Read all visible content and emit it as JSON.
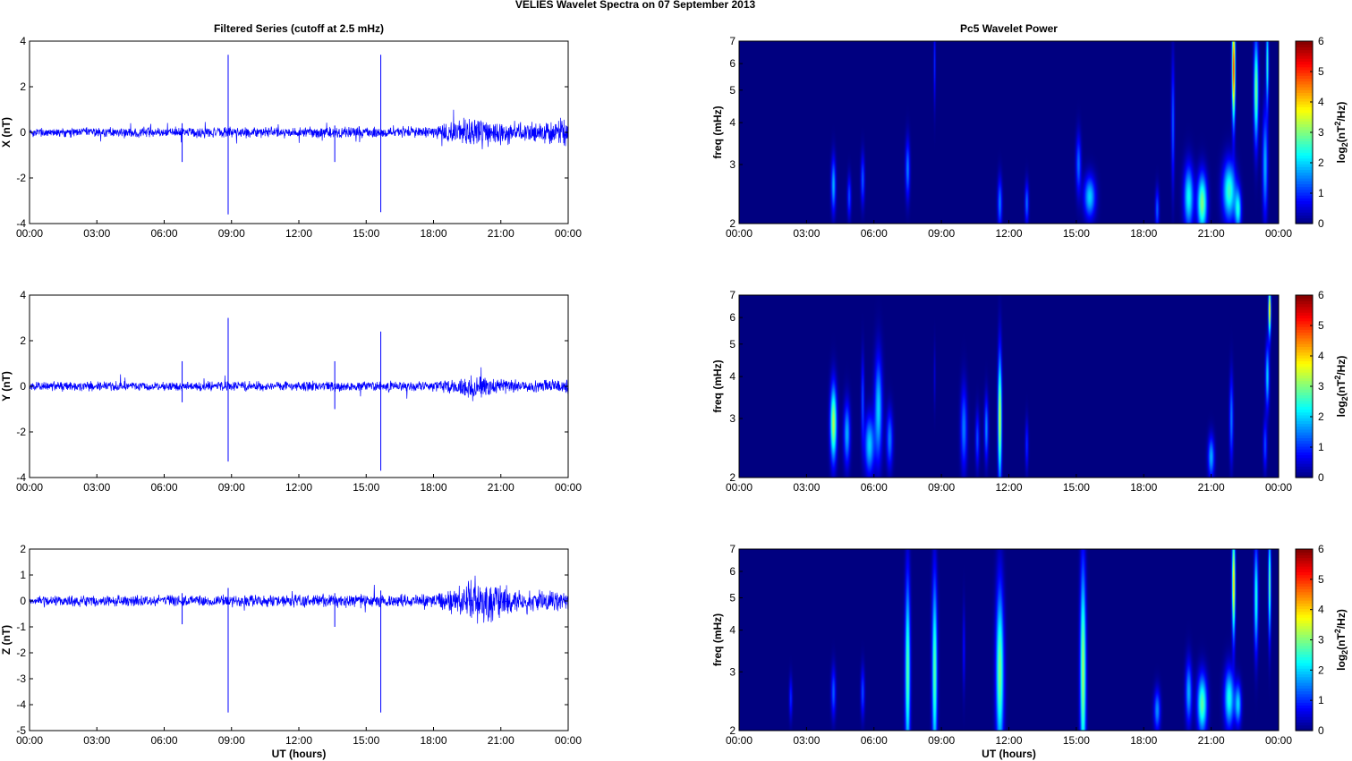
{
  "figure_title": "VELIES Wavelet Spectra on 07 September 2013",
  "colors": {
    "trace": "#0000ff",
    "axes": "#000000",
    "background": "#ffffff"
  },
  "chart_data": [
    {
      "type": "line",
      "panel": "X",
      "title": "Filtered Series (cutoff at 2.5 mHz)",
      "xlabel": "",
      "ylabel": "X (nT)",
      "xlim": [
        0,
        24
      ],
      "ylim": [
        -4,
        4
      ],
      "yticks": [
        -4,
        -2,
        0,
        2,
        4
      ],
      "xtick_labels": [
        "00:00",
        "03:00",
        "06:00",
        "09:00",
        "12:00",
        "15:00",
        "18:00",
        "21:00",
        "00:00"
      ],
      "noise_envelope": {
        "x": [
          0,
          18,
          19,
          20,
          21,
          22,
          23,
          24
        ],
        "amplitude": [
          0.2,
          0.25,
          0.5,
          0.75,
          0.55,
          0.4,
          0.55,
          0.5
        ]
      },
      "spikes": [
        {
          "x": 8.85,
          "min": -3.6,
          "max": 3.4
        },
        {
          "x": 15.65,
          "min": -3.5,
          "max": 3.4
        },
        {
          "x": 6.8,
          "min": -1.3,
          "max": 0.4
        },
        {
          "x": 13.6,
          "min": -1.3,
          "max": 0.3
        }
      ]
    },
    {
      "type": "line",
      "panel": "Y",
      "title": "",
      "xlabel": "",
      "ylabel": "Y (nT)",
      "xlim": [
        0,
        24
      ],
      "ylim": [
        -4,
        4
      ],
      "yticks": [
        -4,
        -2,
        0,
        2,
        4
      ],
      "xtick_labels": [
        "00:00",
        "03:00",
        "06:00",
        "09:00",
        "12:00",
        "15:00",
        "18:00",
        "21:00",
        "00:00"
      ],
      "noise_envelope": {
        "x": [
          0,
          18,
          19,
          20,
          21,
          22,
          24
        ],
        "amplitude": [
          0.2,
          0.22,
          0.35,
          0.5,
          0.35,
          0.25,
          0.3
        ]
      },
      "spikes": [
        {
          "x": 8.85,
          "min": -3.3,
          "max": 3.0
        },
        {
          "x": 15.65,
          "min": -3.7,
          "max": 2.4
        },
        {
          "x": 6.8,
          "min": -0.7,
          "max": 1.1
        },
        {
          "x": 13.6,
          "min": -1.0,
          "max": 1.1
        }
      ]
    },
    {
      "type": "line",
      "panel": "Z",
      "title": "",
      "xlabel": "UT (hours)",
      "ylabel": "Z (nT)",
      "xlim": [
        0,
        24
      ],
      "ylim": [
        -5,
        2
      ],
      "yticks": [
        -5,
        -4,
        -3,
        -2,
        -1,
        0,
        1,
        2
      ],
      "xtick_labels": [
        "00:00",
        "03:00",
        "06:00",
        "09:00",
        "12:00",
        "15:00",
        "18:00",
        "21:00",
        "00:00"
      ],
      "noise_envelope": {
        "x": [
          0,
          18,
          19,
          20,
          21,
          22,
          24
        ],
        "amplitude": [
          0.2,
          0.25,
          0.55,
          0.9,
          0.6,
          0.4,
          0.4
        ]
      },
      "spikes": [
        {
          "x": 8.85,
          "min": -4.3,
          "max": 0.5
        },
        {
          "x": 15.65,
          "min": -4.3,
          "max": 0.4
        },
        {
          "x": 6.8,
          "min": -0.9,
          "max": 0.3
        },
        {
          "x": 13.6,
          "min": -1.0,
          "max": 0.3
        }
      ]
    },
    {
      "type": "heatmap",
      "panel": "X",
      "title": "Pc5 Wavelet Power",
      "xlabel": "",
      "ylabel": "freq (mHz)",
      "xlim": [
        0,
        24
      ],
      "ylim": [
        2,
        7
      ],
      "yscale": "log",
      "yticks": [
        2,
        3,
        4,
        5,
        6,
        7
      ],
      "xtick_labels": [
        "00:00",
        "03:00",
        "06:00",
        "09:00",
        "12:00",
        "15:00",
        "18:00",
        "21:00",
        "00:00"
      ],
      "colorbar": {
        "label": "log2(nT^2/Hz)",
        "range": [
          0,
          6
        ],
        "ticks": [
          0,
          1,
          2,
          3,
          4,
          5,
          6
        ]
      },
      "features": [
        [
          4.2,
          2.6,
          0.07,
          0.13,
          1.8
        ],
        [
          4.9,
          2.4,
          0.06,
          0.1,
          1.2
        ],
        [
          5.5,
          2.7,
          0.06,
          0.12,
          1.3
        ],
        [
          7.5,
          2.9,
          0.07,
          0.14,
          1.5
        ],
        [
          8.7,
          6.0,
          0.03,
          0.2,
          1.0
        ],
        [
          11.6,
          2.3,
          0.07,
          0.12,
          1.5
        ],
        [
          12.8,
          2.3,
          0.06,
          0.1,
          1.4
        ],
        [
          15.1,
          3.0,
          0.08,
          0.14,
          1.4
        ],
        [
          15.6,
          2.4,
          0.18,
          0.1,
          2.0
        ],
        [
          18.6,
          2.2,
          0.06,
          0.1,
          1.3
        ],
        [
          19.3,
          4.0,
          0.05,
          0.3,
          1.3
        ],
        [
          20.0,
          2.4,
          0.15,
          0.15,
          2.3
        ],
        [
          20.6,
          2.3,
          0.15,
          0.14,
          3.0
        ],
        [
          21.8,
          2.5,
          0.2,
          0.14,
          2.6
        ],
        [
          22.2,
          2.2,
          0.1,
          0.1,
          2.2
        ],
        [
          22.0,
          5.8,
          0.05,
          0.25,
          5.0
        ],
        [
          23.0,
          5.0,
          0.07,
          0.25,
          3.0
        ],
        [
          23.4,
          3.0,
          0.08,
          0.25,
          1.8
        ],
        [
          23.5,
          6.0,
          0.04,
          0.2,
          2.5
        ]
      ]
    },
    {
      "type": "heatmap",
      "panel": "Y",
      "title": "",
      "xlabel": "",
      "ylabel": "freq (mHz)",
      "xlim": [
        0,
        24
      ],
      "ylim": [
        2,
        7
      ],
      "yscale": "log",
      "yticks": [
        2,
        3,
        4,
        5,
        6,
        7
      ],
      "xtick_labels": [
        "00:00",
        "03:00",
        "06:00",
        "09:00",
        "12:00",
        "15:00",
        "18:00",
        "21:00",
        "00:00"
      ],
      "colorbar": {
        "label": "log2(nT^2/Hz)",
        "range": [
          0,
          6
        ],
        "ticks": [
          0,
          1,
          2,
          3,
          4,
          5,
          6
        ]
      },
      "features": [
        [
          4.2,
          2.9,
          0.1,
          0.18,
          3.3
        ],
        [
          4.8,
          2.7,
          0.1,
          0.15,
          1.8
        ],
        [
          5.5,
          3.4,
          0.05,
          0.2,
          1.2
        ],
        [
          5.8,
          2.5,
          0.15,
          0.14,
          2.0
        ],
        [
          6.2,
          3.2,
          0.12,
          0.25,
          2.0
        ],
        [
          6.7,
          2.6,
          0.1,
          0.14,
          1.5
        ],
        [
          10.0,
          2.8,
          0.1,
          0.2,
          1.5
        ],
        [
          10.6,
          2.6,
          0.06,
          0.13,
          1.2
        ],
        [
          11.0,
          2.8,
          0.06,
          0.15,
          1.6
        ],
        [
          11.6,
          3.0,
          0.06,
          0.3,
          3.5
        ],
        [
          12.8,
          2.5,
          0.05,
          0.12,
          1.0
        ],
        [
          8.7,
          4.0,
          0.03,
          0.15,
          0.5
        ],
        [
          21.0,
          2.3,
          0.1,
          0.1,
          1.8
        ],
        [
          21.9,
          3.0,
          0.06,
          0.2,
          1.5
        ],
        [
          23.4,
          2.5,
          0.06,
          0.12,
          1.2
        ],
        [
          23.6,
          6.3,
          0.04,
          0.12,
          4.0
        ],
        [
          23.5,
          4.0,
          0.06,
          0.15,
          2.0
        ]
      ]
    },
    {
      "type": "heatmap",
      "panel": "Z",
      "title": "",
      "xlabel": "UT (hours)",
      "ylabel": "freq (mHz)",
      "xlim": [
        0,
        24
      ],
      "ylim": [
        2,
        7
      ],
      "yscale": "log",
      "yticks": [
        2,
        3,
        4,
        5,
        6,
        7
      ],
      "xtick_labels": [
        "00:00",
        "03:00",
        "06:00",
        "09:00",
        "12:00",
        "15:00",
        "18:00",
        "21:00",
        "00:00"
      ],
      "colorbar": {
        "label": "log2(nT^2/Hz)",
        "range": [
          0,
          6
        ],
        "ticks": [
          0,
          1,
          2,
          3,
          4,
          5,
          6
        ]
      },
      "features": [
        [
          7.5,
          3.0,
          0.08,
          0.45,
          2.8
        ],
        [
          8.7,
          3.0,
          0.08,
          0.45,
          2.8
        ],
        [
          11.6,
          3.0,
          0.12,
          0.4,
          3.0
        ],
        [
          15.3,
          3.0,
          0.09,
          0.5,
          3.2
        ],
        [
          2.3,
          2.5,
          0.05,
          0.1,
          1.0
        ],
        [
          4.2,
          2.6,
          0.07,
          0.12,
          1.3
        ],
        [
          5.5,
          2.6,
          0.06,
          0.12,
          1.2
        ],
        [
          10.0,
          3.5,
          0.04,
          0.2,
          0.8
        ],
        [
          18.6,
          2.3,
          0.1,
          0.1,
          1.6
        ],
        [
          20.0,
          2.6,
          0.1,
          0.15,
          1.8
        ],
        [
          20.6,
          2.4,
          0.15,
          0.14,
          2.8
        ],
        [
          21.8,
          2.5,
          0.15,
          0.14,
          2.4
        ],
        [
          22.2,
          2.4,
          0.1,
          0.1,
          2.0
        ],
        [
          22.0,
          5.5,
          0.05,
          0.25,
          4.0
        ],
        [
          23.0,
          5.0,
          0.06,
          0.25,
          2.5
        ],
        [
          23.6,
          5.5,
          0.04,
          0.25,
          3.0
        ]
      ]
    }
  ]
}
